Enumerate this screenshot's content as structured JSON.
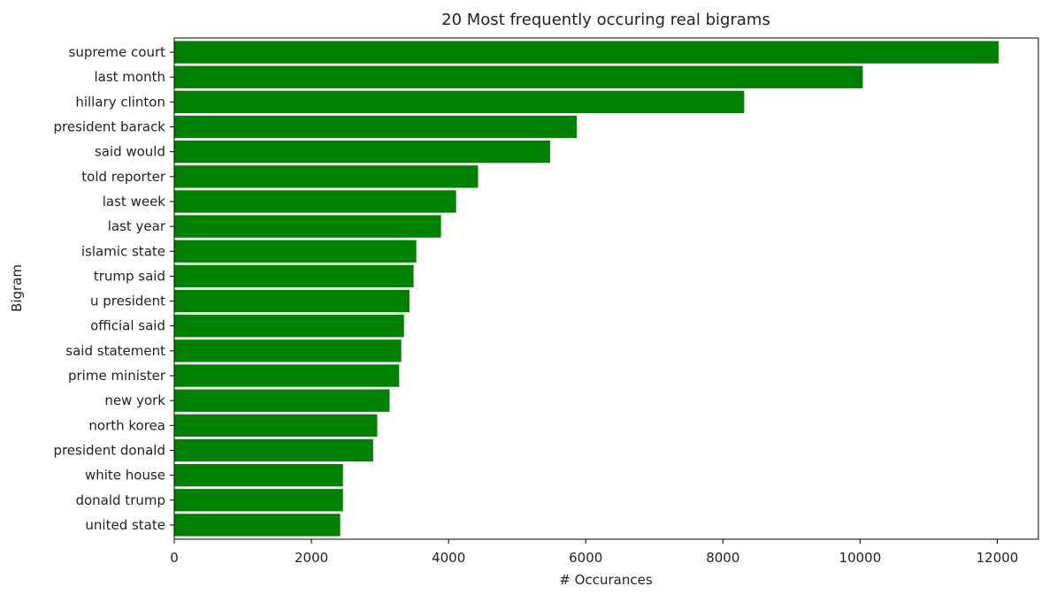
{
  "chart_data": {
    "type": "bar",
    "orientation": "horizontal",
    "title": "20 Most frequently occuring real bigrams",
    "xlabel": "# Occurances",
    "ylabel": "Bigram",
    "xlim": [
      0,
      12600
    ],
    "xticks": [
      0,
      2000,
      4000,
      6000,
      8000,
      10000,
      12000
    ],
    "grid": false,
    "bar_color": "#008000",
    "categories": [
      "supreme court",
      "last month",
      "hillary clinton",
      "president barack",
      "said would",
      "told reporter",
      "last week",
      "last year",
      "islamic state",
      "trump said",
      "u president",
      "official said",
      "said statement",
      "prime minister",
      "new york",
      "north korea",
      "president donald",
      "white house",
      "donald trump",
      "united state"
    ],
    "values": [
      12020,
      10040,
      8310,
      5870,
      5480,
      4430,
      4110,
      3890,
      3530,
      3490,
      3430,
      3350,
      3310,
      3280,
      3140,
      2960,
      2900,
      2460,
      2460,
      2420
    ]
  }
}
